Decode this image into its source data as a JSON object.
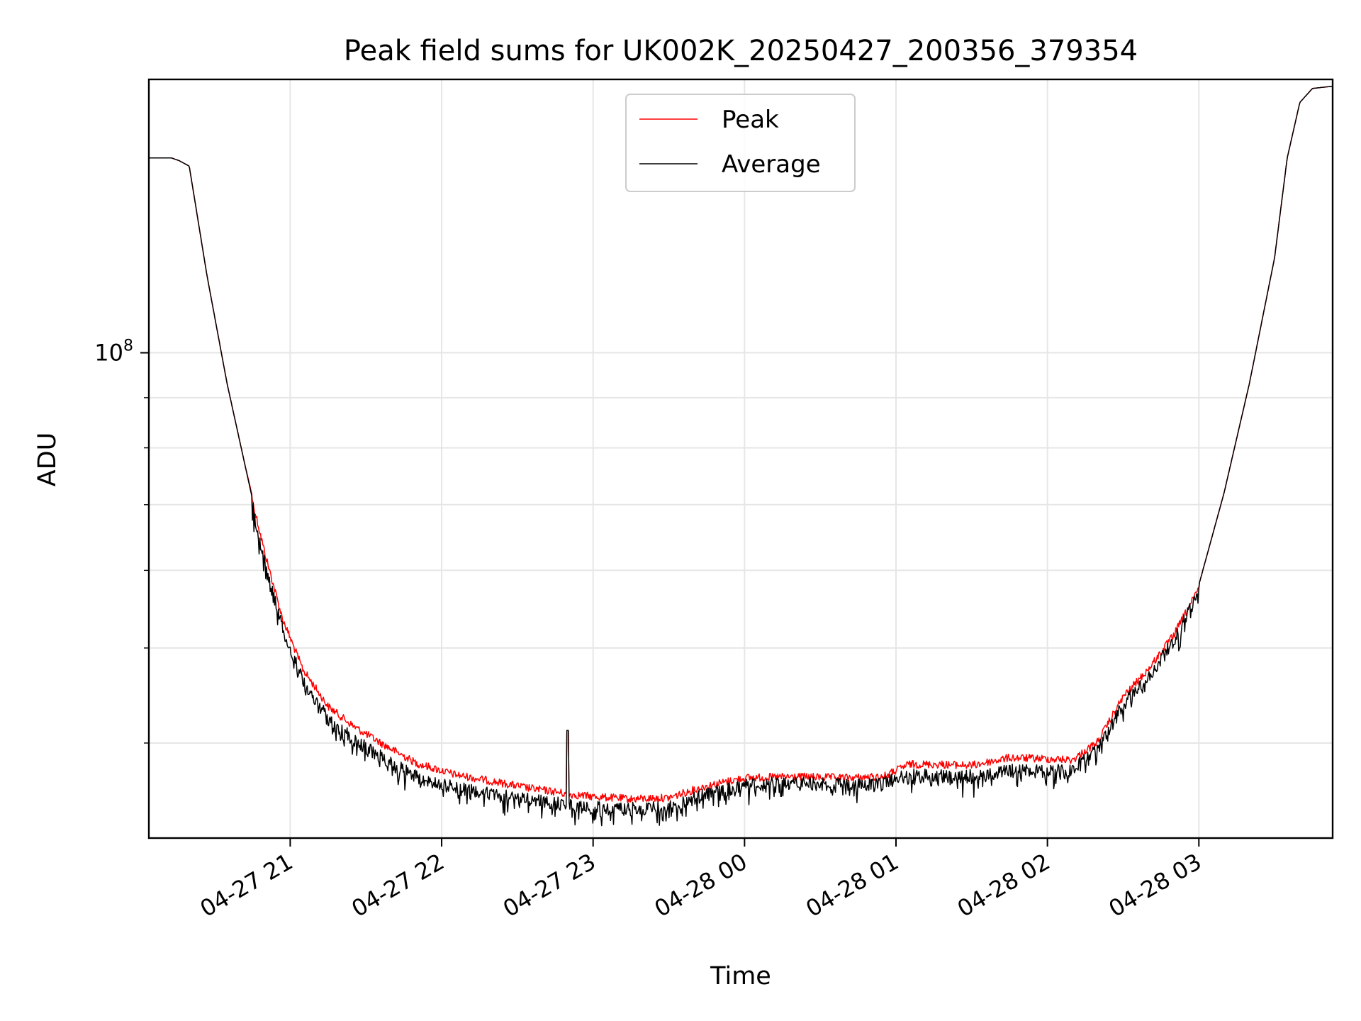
{
  "chart_data": {
    "type": "line",
    "title": "Peak field sums for UK002K_20250427_200356_379354",
    "xlabel": "Time",
    "ylabel": "ADU",
    "yscale": "log",
    "ylim": [
      32000000,
      190000000
    ],
    "xlim": [
      "2025-04-27 20:04",
      "2025-04-28 03:53"
    ],
    "x_ticks": [
      "04-27 21",
      "04-27 22",
      "04-27 23",
      "04-28 00",
      "04-28 01",
      "04-28 02",
      "04-28 03"
    ],
    "y_ticks": [
      {
        "value": 100000000,
        "base": "10",
        "exponent": "8"
      }
    ],
    "grid": true,
    "legend_position": "upper center",
    "series": [
      {
        "name": "Peak",
        "color": "#ff0000",
        "x": [
          "2025-04-27 20:04",
          "2025-04-27 20:13",
          "2025-04-27 20:16",
          "2025-04-27 20:20",
          "2025-04-27 20:27",
          "2025-04-27 20:35",
          "2025-04-27 20:42",
          "2025-04-27 20:50",
          "2025-04-27 20:57",
          "2025-04-27 21:05",
          "2025-04-27 21:15",
          "2025-04-27 21:25",
          "2025-04-27 21:35",
          "2025-04-27 21:50",
          "2025-04-27 22:05",
          "2025-04-27 22:20",
          "2025-04-27 22:35",
          "2025-04-27 22:45",
          "2025-04-27 22:50",
          "2025-04-27 23:00",
          "2025-04-27 23:15",
          "2025-04-27 23:30",
          "2025-04-27 23:45",
          "2025-04-28 00:00",
          "2025-04-28 00:20",
          "2025-04-28 00:40",
          "2025-04-28 00:55",
          "2025-04-28 01:05",
          "2025-04-28 01:15",
          "2025-04-28 01:30",
          "2025-04-28 01:45",
          "2025-04-28 02:00",
          "2025-04-28 02:10",
          "2025-04-28 02:20",
          "2025-04-28 02:30",
          "2025-04-28 02:40",
          "2025-04-28 02:50",
          "2025-04-28 03:00",
          "2025-04-28 03:10",
          "2025-04-28 03:20",
          "2025-04-28 03:30",
          "2025-04-28 03:35",
          "2025-04-28 03:40",
          "2025-04-28 03:45",
          "2025-04-28 03:53"
        ],
        "values": [
          158000000,
          158000000,
          157000000,
          155000000,
          120000000,
          93000000,
          77000000,
          63000000,
          54000000,
          48000000,
          44000000,
          42000000,
          40500000,
          38500000,
          37500000,
          36900000,
          36300000,
          36000000,
          35800000,
          35600000,
          35400000,
          35500000,
          36500000,
          37200000,
          37300000,
          37200000,
          37300000,
          38400000,
          38400000,
          38300000,
          39000000,
          38900000,
          38800000,
          40500000,
          45000000,
          48000000,
          52000000,
          58000000,
          72000000,
          93000000,
          125000000,
          158000000,
          180000000,
          186000000,
          187000000
        ]
      },
      {
        "name": "Average",
        "color": "#000000",
        "x": [
          "2025-04-27 20:04",
          "2025-04-27 20:13",
          "2025-04-27 20:16",
          "2025-04-27 20:20",
          "2025-04-27 20:27",
          "2025-04-27 20:35",
          "2025-04-27 20:42",
          "2025-04-27 20:50",
          "2025-04-27 20:57",
          "2025-04-27 21:05",
          "2025-04-27 21:15",
          "2025-04-27 21:25",
          "2025-04-27 21:35",
          "2025-04-27 21:50",
          "2025-04-27 22:05",
          "2025-04-27 22:20",
          "2025-04-27 22:35",
          "2025-04-27 22:45",
          "2025-04-27 22:50",
          "2025-04-27 23:00",
          "2025-04-27 23:15",
          "2025-04-27 23:30",
          "2025-04-27 23:45",
          "2025-04-28 00:00",
          "2025-04-28 00:20",
          "2025-04-28 00:40",
          "2025-04-28 00:55",
          "2025-04-28 01:05",
          "2025-04-28 01:15",
          "2025-04-28 01:30",
          "2025-04-28 01:45",
          "2025-04-28 02:00",
          "2025-04-28 02:10",
          "2025-04-28 02:20",
          "2025-04-28 02:30",
          "2025-04-28 02:40",
          "2025-04-28 02:50",
          "2025-04-28 03:00",
          "2025-04-28 03:10",
          "2025-04-28 03:20",
          "2025-04-28 03:30",
          "2025-04-28 03:35",
          "2025-04-28 03:40",
          "2025-04-28 03:45",
          "2025-04-28 03:53"
        ],
        "values": [
          158000000,
          158000000,
          157000000,
          155000000,
          120000000,
          93000000,
          77000000,
          62000000,
          53000000,
          47000000,
          43000000,
          41000000,
          39500000,
          37500000,
          36600000,
          36000000,
          35600000,
          35300000,
          35100000,
          34900000,
          34800000,
          35000000,
          36000000,
          36800000,
          37000000,
          36800000,
          37000000,
          37700000,
          37600000,
          37600000,
          38100000,
          38000000,
          38200000,
          40000000,
          44500000,
          47500000,
          51500000,
          58000000,
          72000000,
          93000000,
          125000000,
          158000000,
          180000000,
          186000000,
          187000000
        ]
      }
    ],
    "annotations": [
      {
        "x": "2025-04-27 22:50",
        "value": 41200000,
        "series": "Peak"
      }
    ]
  }
}
